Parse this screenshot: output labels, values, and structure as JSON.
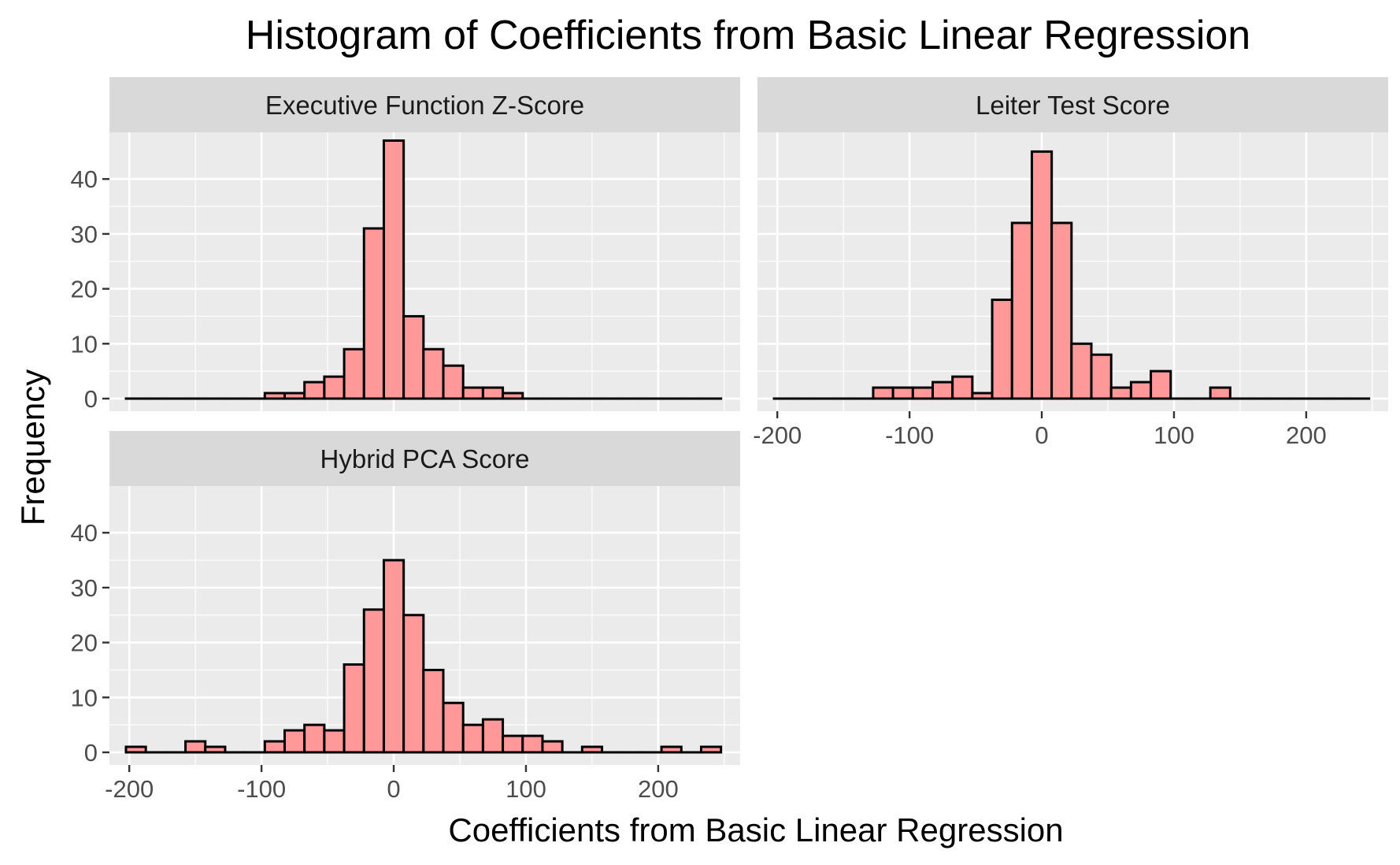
{
  "chart_data": {
    "type": "bar",
    "title": "Histogram of Coefficients from Basic Linear Regression",
    "xlabel": "Coefficients from Basic Linear Regression",
    "ylabel": "Frequency",
    "xlim": [
      -215,
      262
    ],
    "ylim": [
      -2.3,
      48.5
    ],
    "x_ticks": [
      -200,
      -100,
      0,
      100,
      200
    ],
    "x_tick_labels": [
      "-200",
      "-100",
      "0",
      "100",
      "200"
    ],
    "y_ticks": [
      0,
      10,
      20,
      30,
      40
    ],
    "y_tick_labels": [
      "0",
      "10",
      "20",
      "30",
      "40"
    ],
    "bin_width": 15,
    "grid": true,
    "fill_color": "#ff9999",
    "outline_color": "#000000",
    "panel_background": "#ebebeb",
    "strip_background": "#d9d9d9",
    "panels": [
      {
        "name": "Executive Function Z-Score",
        "bin_centers": [
          -195,
          -180,
          -165,
          -150,
          -135,
          -120,
          -105,
          -90,
          -75,
          -60,
          -45,
          -30,
          -15,
          0,
          15,
          30,
          45,
          60,
          75,
          90,
          105,
          120,
          135,
          150,
          165,
          180,
          195,
          210,
          225,
          240
        ],
        "counts": [
          0,
          0,
          0,
          0,
          0,
          0,
          0,
          1,
          1,
          3,
          4,
          9,
          31,
          47,
          15,
          9,
          6,
          2,
          2,
          1,
          0,
          0,
          0,
          0,
          0,
          0,
          0,
          0,
          0,
          0
        ]
      },
      {
        "name": "Leiter Test Score",
        "bin_centers": [
          -195,
          -180,
          -165,
          -150,
          -135,
          -120,
          -105,
          -90,
          -75,
          -60,
          -45,
          -30,
          -15,
          0,
          15,
          30,
          45,
          60,
          75,
          90,
          105,
          120,
          135,
          150,
          165,
          180,
          195,
          210,
          225,
          240
        ],
        "counts": [
          0,
          0,
          0,
          0,
          0,
          2,
          2,
          2,
          3,
          4,
          1,
          18,
          32,
          45,
          32,
          10,
          8,
          2,
          3,
          5,
          0,
          0,
          2,
          0,
          0,
          0,
          0,
          0,
          0,
          0
        ]
      },
      {
        "name": "Hybrid PCA Score",
        "bin_centers": [
          -195,
          -180,
          -165,
          -150,
          -135,
          -120,
          -105,
          -90,
          -75,
          -60,
          -45,
          -30,
          -15,
          0,
          15,
          30,
          45,
          60,
          75,
          90,
          105,
          120,
          135,
          150,
          165,
          180,
          195,
          210,
          225,
          240
        ],
        "counts": [
          1,
          0,
          0,
          2,
          1,
          0,
          0,
          2,
          4,
          5,
          4,
          16,
          26,
          35,
          25,
          15,
          9,
          5,
          6,
          3,
          3,
          2,
          0,
          1,
          0,
          0,
          0,
          1,
          0,
          1
        ]
      }
    ]
  }
}
